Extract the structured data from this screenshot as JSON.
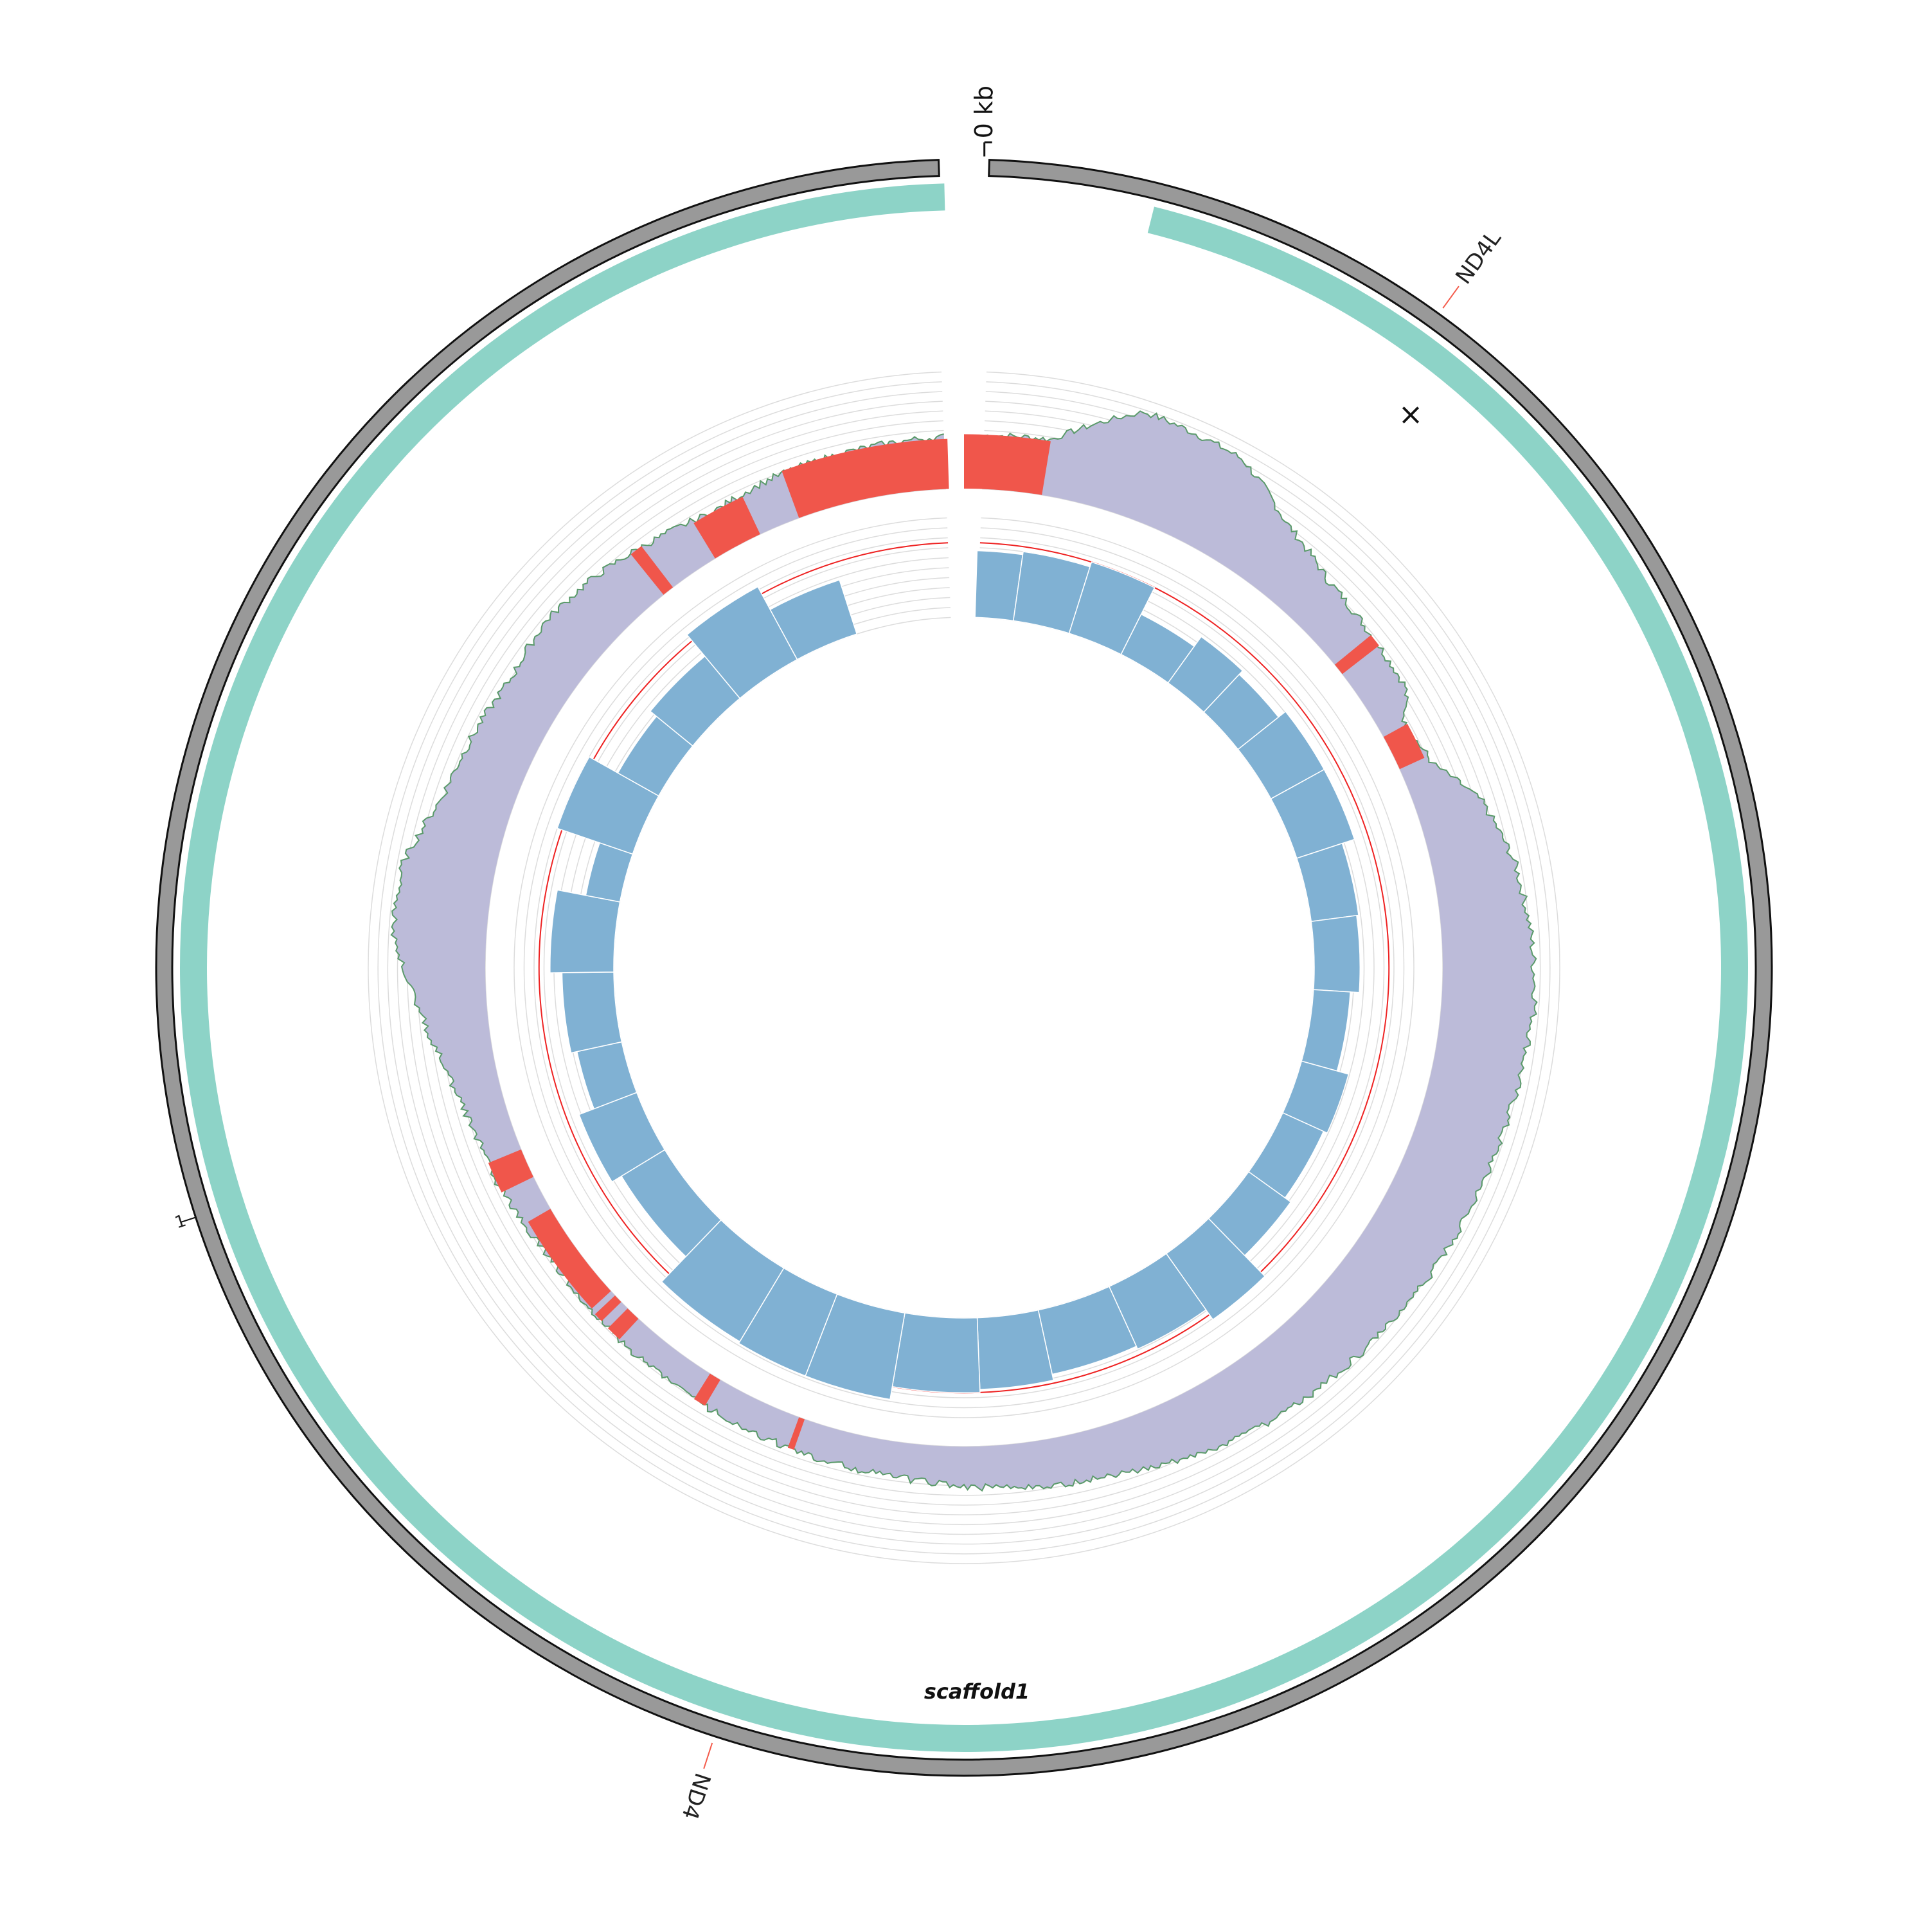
{
  "scale": {
    "start_label": "0 kb"
  },
  "scaffold": {
    "name": "scaffold1"
  },
  "genes": [
    {
      "name": "ND4L",
      "position": 0.1,
      "color": "#f45b4b"
    },
    {
      "name": "ND4",
      "position": 0.55,
      "color": "#f45b4b"
    }
  ],
  "ticks": [
    {
      "label": "1",
      "position": 0.7
    }
  ],
  "close_control": {
    "glyph": "×"
  },
  "colors": {
    "chrom_band": "#999999",
    "chrom_outline": "#111111",
    "teal_ring": "#8dd3c7",
    "coverage_fill": "#bcbbd9",
    "coverage_line": "#5a9a6a",
    "low_coverage": "#f0564b",
    "grid": "#dcdcdc",
    "threshold": "#ee2222",
    "gc_bars": "#80b1d3"
  },
  "gap": {
    "start": 0.995,
    "end": 0.005
  },
  "teal_gap": {
    "start": 0.996,
    "end": 0.039
  },
  "coverage_track": {
    "low_regions": [
      [
        0.0,
        0.026
      ],
      [
        0.141,
        0.145
      ],
      [
        0.17,
        0.182
      ],
      [
        0.554,
        0.556
      ],
      [
        0.585,
        0.589
      ],
      [
        0.619,
        0.624
      ],
      [
        0.627,
        0.63
      ],
      [
        0.632,
        0.666
      ],
      [
        0.678,
        0.688
      ],
      [
        0.892,
        0.896
      ],
      [
        0.913,
        0.93
      ],
      [
        0.944,
        0.995
      ]
    ],
    "profile": [
      [
        0.0,
        0.45
      ],
      [
        0.026,
        0.48
      ],
      [
        0.05,
        0.9
      ],
      [
        0.08,
        0.86
      ],
      [
        0.1,
        0.6
      ],
      [
        0.12,
        0.45
      ],
      [
        0.141,
        0.4
      ],
      [
        0.16,
        0.38
      ],
      [
        0.17,
        0.2
      ],
      [
        0.185,
        0.28
      ],
      [
        0.2,
        0.55
      ],
      [
        0.22,
        0.7
      ],
      [
        0.24,
        0.76
      ],
      [
        0.26,
        0.8
      ],
      [
        0.28,
        0.75
      ],
      [
        0.3,
        0.72
      ],
      [
        0.32,
        0.7
      ],
      [
        0.34,
        0.68
      ],
      [
        0.36,
        0.66
      ],
      [
        0.38,
        0.62
      ],
      [
        0.4,
        0.6
      ],
      [
        0.42,
        0.55
      ],
      [
        0.44,
        0.48
      ],
      [
        0.46,
        0.42
      ],
      [
        0.48,
        0.38
      ],
      [
        0.5,
        0.34
      ],
      [
        0.52,
        0.3
      ],
      [
        0.55,
        0.28
      ],
      [
        0.58,
        0.26
      ],
      [
        0.62,
        0.24
      ],
      [
        0.65,
        0.22
      ],
      [
        0.68,
        0.3
      ],
      [
        0.7,
        0.32
      ],
      [
        0.72,
        0.42
      ],
      [
        0.74,
        0.6
      ],
      [
        0.76,
        0.8
      ],
      [
        0.78,
        0.78
      ],
      [
        0.8,
        0.6
      ],
      [
        0.82,
        0.55
      ],
      [
        0.84,
        0.5
      ],
      [
        0.86,
        0.55
      ],
      [
        0.88,
        0.5
      ],
      [
        0.9,
        0.42
      ],
      [
        0.92,
        0.35
      ],
      [
        0.94,
        0.4
      ],
      [
        0.96,
        0.42
      ],
      [
        1.0,
        0.45
      ]
    ]
  },
  "gc_track": {
    "threshold": 0.75,
    "bars": [
      [
        0.005,
        0.0225,
        0.67
      ],
      [
        0.0225,
        0.0485,
        0.7
      ],
      [
        0.0485,
        0.074,
        0.75
      ],
      [
        0.074,
        0.099,
        0.45
      ],
      [
        0.099,
        0.12,
        0.57
      ],
      [
        0.12,
        0.143,
        0.52
      ],
      [
        0.143,
        0.17,
        0.61
      ],
      [
        0.17,
        0.1995,
        0.61
      ],
      [
        0.1995,
        0.229,
        0.48
      ],
      [
        0.229,
        0.26,
        0.46
      ],
      [
        0.26,
        0.293,
        0.37
      ],
      [
        0.293,
        0.318,
        0.49
      ],
      [
        0.318,
        0.349,
        0.45
      ],
      [
        0.349,
        0.377,
        0.52
      ],
      [
        0.377,
        0.402,
        0.81
      ],
      [
        0.402,
        0.432,
        0.69
      ],
      [
        0.432,
        0.466,
        0.66
      ],
      [
        0.466,
        0.494,
        0.72
      ],
      [
        0.494,
        0.527,
        0.75
      ],
      [
        0.527,
        0.559,
        0.88
      ],
      [
        0.559,
        0.586,
        0.88
      ],
      [
        0.586,
        0.622,
        0.86
      ],
      [
        0.622,
        0.663,
        0.51
      ],
      [
        0.663,
        0.692,
        0.62
      ],
      [
        0.692,
        0.716,
        0.46
      ],
      [
        0.716,
        0.748,
        0.52
      ],
      [
        0.748,
        0.78,
        0.64
      ],
      [
        0.78,
        0.8025,
        0.35
      ],
      [
        0.8025,
        0.8315,
        0.8
      ],
      [
        0.8315,
        0.859,
        0.47
      ],
      [
        0.859,
        0.8895,
        0.55
      ],
      [
        0.8895,
        0.921,
        0.83
      ],
      [
        0.921,
        0.9505,
        0.57
      ]
    ]
  }
}
